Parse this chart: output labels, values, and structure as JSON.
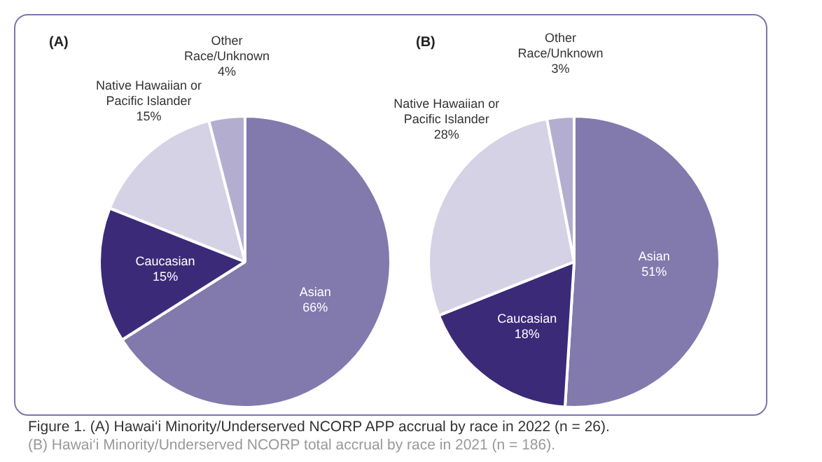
{
  "chart_data": [
    {
      "type": "pie",
      "title": "(A)",
      "categories": [
        "Asian",
        "Caucasian",
        "Native Hawaiian or Pacific Islander",
        "Other Race/Unknown"
      ],
      "values": [
        66,
        15,
        15,
        4
      ],
      "colors": [
        "#8279ad",
        "#3b2a78",
        "#d5d2e6",
        "#b3aed0"
      ],
      "value_labels": [
        "66%",
        "15%",
        "15%",
        "4%"
      ],
      "legend": false,
      "annotations": [
        "Figure 1. (A) Hawai‘i Minority/Underserved NCORP APP accrual by race in 2022 (n = 26)."
      ]
    },
    {
      "type": "pie",
      "title": "(B)",
      "categories": [
        "Asian",
        "Caucasian",
        "Native Hawaiian or Pacific Islander",
        "Other Race/Unknown"
      ],
      "values": [
        51,
        18,
        28,
        3
      ],
      "colors": [
        "#8279ad",
        "#3b2a78",
        "#d5d2e6",
        "#b3aed0"
      ],
      "value_labels": [
        "51%",
        "18%",
        "28%",
        "3%"
      ],
      "legend": false,
      "annotations": [
        "(B) Hawai‘i Minority/Underserved NCORP total accrual by race in 2021 (n = 186)."
      ]
    }
  ]
}
